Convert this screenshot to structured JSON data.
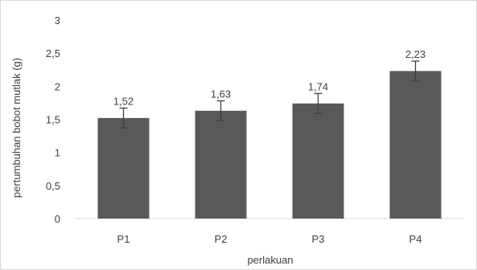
{
  "chart_data": {
    "type": "bar",
    "xlabel": "perlakuan",
    "ylabel": "pertumbuhan bobot mutlak (g)",
    "categories": [
      "P1",
      "P2",
      "P3",
      "P4"
    ],
    "values": [
      1.52,
      1.63,
      1.74,
      2.23
    ],
    "value_labels": [
      "1,52",
      "1,63",
      "1,74",
      "2,23"
    ],
    "error": [
      0.15,
      0.15,
      0.15,
      0.15
    ],
    "ylim": [
      0,
      3
    ],
    "yticks": [
      0,
      0.5,
      1,
      1.5,
      2,
      2.5,
      3
    ],
    "ytick_labels": [
      "0",
      "0,5",
      "1",
      "1,5",
      "2",
      "2,5",
      "3"
    ],
    "grid": false,
    "legend": "none",
    "colors": {
      "bar": "#595959",
      "axis": "#d9d9d9",
      "text": "#404040",
      "error_bar": "#404040"
    }
  }
}
